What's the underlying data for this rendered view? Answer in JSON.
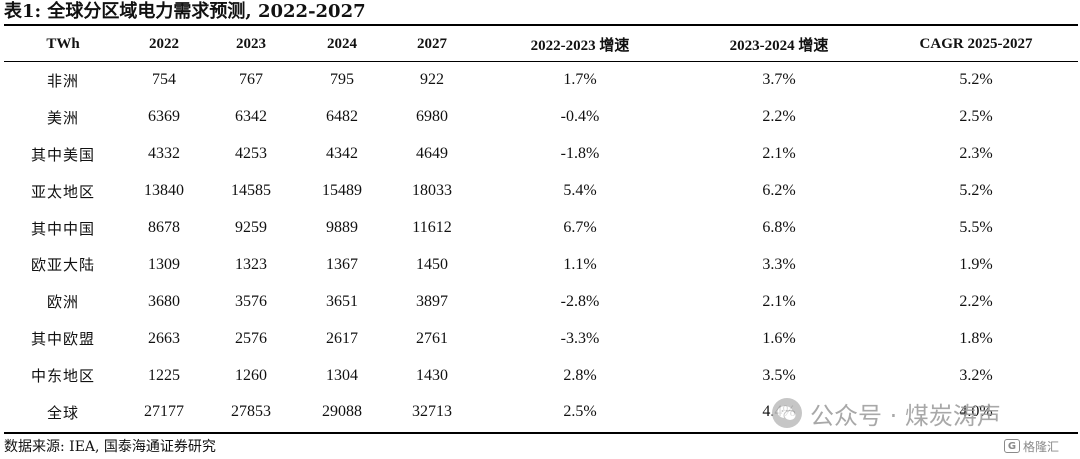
{
  "title": "表1:  全球分区域电力需求预测, 2022-2027",
  "table": {
    "headers": [
      "TWh",
      "2022",
      "2023",
      "2024",
      "2027",
      "2022-2023 增速",
      "2023-2024 增速",
      "CAGR 2025-2027"
    ],
    "rows": [
      [
        "非洲",
        "754",
        "767",
        "795",
        "922",
        "1.7%",
        "3.7%",
        "5.2%"
      ],
      [
        "美洲",
        "6369",
        "6342",
        "6482",
        "6980",
        "-0.4%",
        "2.2%",
        "2.5%"
      ],
      [
        "其中美国",
        "4332",
        "4253",
        "4342",
        "4649",
        "-1.8%",
        "2.1%",
        "2.3%"
      ],
      [
        "亚太地区",
        "13840",
        "14585",
        "15489",
        "18033",
        "5.4%",
        "6.2%",
        "5.2%"
      ],
      [
        "其中中国",
        "8678",
        "9259",
        "9889",
        "11612",
        "6.7%",
        "6.8%",
        "5.5%"
      ],
      [
        "欧亚大陆",
        "1309",
        "1323",
        "1367",
        "1450",
        "1.1%",
        "3.3%",
        "1.9%"
      ],
      [
        "欧洲",
        "3680",
        "3576",
        "3651",
        "3897",
        "-2.8%",
        "2.1%",
        "2.2%"
      ],
      [
        "其中欧盟",
        "2663",
        "2576",
        "2617",
        "2761",
        "-3.3%",
        "1.6%",
        "1.8%"
      ],
      [
        "中东地区",
        "1225",
        "1260",
        "1304",
        "1430",
        "2.8%",
        "3.5%",
        "3.2%"
      ],
      [
        "全球",
        "27177",
        "27853",
        "29088",
        "32713",
        "2.5%",
        "4.4%",
        "4.0%"
      ]
    ]
  },
  "source": "数据来源: IEA, 国泰海通证券研究",
  "watermark": {
    "text": "公众号 · 煤炭涛声",
    "icon": "wechat-icon"
  },
  "corner_mark": {
    "text": "格隆汇",
    "icon": "gelonghui-logo-icon"
  }
}
